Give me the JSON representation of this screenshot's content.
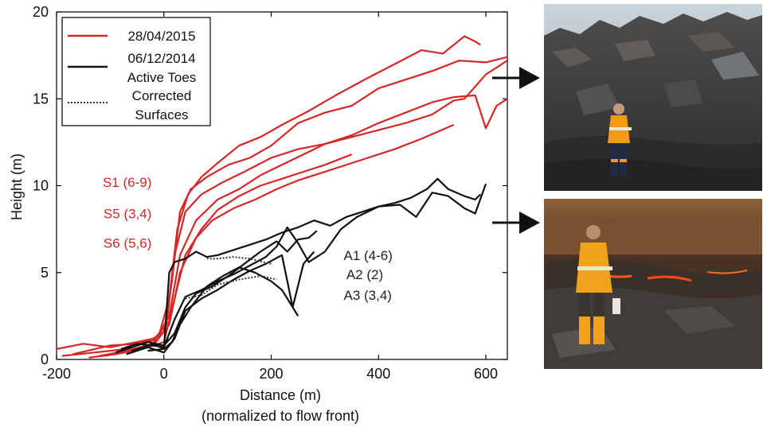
{
  "chart_data": {
    "type": "line",
    "title": "",
    "xlabel": "Distance (m)",
    "xlabel_sub": "(normalized to flow front)",
    "ylabel": "Height (m)",
    "xlim": [
      -200,
      640
    ],
    "ylim": [
      0,
      20
    ],
    "xticks": [
      -200,
      0,
      200,
      400,
      600
    ],
    "yticks": [
      0,
      5,
      10,
      15,
      20
    ],
    "grid": false,
    "legend_position": "top-left",
    "legend": [
      {
        "label": "28/04/2015",
        "style": "solid",
        "color": "#d62728"
      },
      {
        "label": "06/12/2014",
        "label2": "Active Toes",
        "style": "solid",
        "color": "#111111"
      },
      {
        "label": "Corrected",
        "label2": "Surfaces",
        "style": "dotted",
        "color": "#333333"
      }
    ],
    "annotations": [
      {
        "text": "S1 (6-9)",
        "x": -5,
        "y": 10.2,
        "color": "#d62728"
      },
      {
        "text": "S5 (3,4)",
        "x": -5,
        "y": 8.4,
        "color": "#d62728"
      },
      {
        "text": "S6 (5,6)",
        "x": -5,
        "y": 6.7,
        "color": "#d62728"
      },
      {
        "text": "A1 (4-6)",
        "x": 335,
        "y": 6.0,
        "color": "#222222"
      },
      {
        "text": "A2 (2)",
        "x": 340,
        "y": 4.9,
        "color": "#222222"
      },
      {
        "text": "A3 (3,4)",
        "x": 335,
        "y": 3.7,
        "color": "#222222"
      }
    ],
    "series": [
      {
        "group": "28/04/2015",
        "color": "#d62728",
        "x": [
          -200,
          -150,
          -100,
          -50,
          -20,
          0,
          15,
          30,
          50,
          80,
          120,
          160,
          200,
          250,
          300,
          350,
          400,
          450,
          500,
          550,
          600,
          640
        ],
        "y": [
          0.6,
          0.9,
          0.7,
          1.0,
          1.2,
          1.6,
          4.5,
          8.5,
          9.8,
          10.5,
          11.2,
          11.6,
          12.3,
          13.6,
          14.2,
          14.6,
          15.6,
          16.1,
          16.6,
          17.2,
          17.1,
          17.4
        ]
      },
      {
        "group": "28/04/2015",
        "color": "#d62728",
        "x": [
          -170,
          -100,
          -50,
          -10,
          10,
          25,
          45,
          70,
          100,
          140,
          180,
          220,
          270,
          320,
          380,
          430,
          480,
          520,
          560,
          580,
          590
        ],
        "y": [
          0.3,
          0.8,
          0.9,
          1.3,
          3.5,
          7.5,
          9.5,
          10.5,
          11.3,
          12.3,
          12.8,
          13.5,
          14.3,
          15.2,
          16.2,
          17.0,
          17.8,
          17.6,
          18.6,
          18.3,
          18.1
        ]
      },
      {
        "group": "28/04/2015",
        "color": "#d62728",
        "x": [
          -190,
          -130,
          -70,
          -20,
          5,
          20,
          40,
          70,
          110,
          150,
          200,
          250,
          300,
          350,
          400,
          450,
          500,
          540,
          560,
          600,
          640
        ],
        "y": [
          0.2,
          0.4,
          0.6,
          1.1,
          2.0,
          6.0,
          8.5,
          9.5,
          10.2,
          10.8,
          11.6,
          12.1,
          12.4,
          12.8,
          13.2,
          13.6,
          14.1,
          14.9,
          15.0,
          16.4,
          17.2
        ]
      },
      {
        "group": "28/04/2015",
        "color": "#d62728",
        "x": [
          -120,
          -70,
          -20,
          10,
          30,
          60,
          100,
          140,
          180,
          220,
          260,
          300,
          350,
          400,
          450,
          500,
          540,
          580,
          600,
          620,
          640
        ],
        "y": [
          0.2,
          0.5,
          0.9,
          2.5,
          6.0,
          8.0,
          9.2,
          9.8,
          10.6,
          11.2,
          11.8,
          12.4,
          12.9,
          13.6,
          14.2,
          14.8,
          15.1,
          15.2,
          13.3,
          14.6,
          15.0
        ]
      },
      {
        "group": "28/04/2015",
        "color": "#d62728",
        "x": [
          -140,
          -90,
          -40,
          0,
          20,
          40,
          70,
          100,
          140,
          180,
          220,
          260,
          300,
          350
        ],
        "y": [
          0.1,
          0.3,
          0.6,
          1.0,
          3.5,
          6.0,
          7.5,
          8.6,
          9.4,
          10.0,
          10.4,
          10.8,
          11.2,
          11.8
        ]
      },
      {
        "group": "28/04/2015",
        "color": "#d62728",
        "x": [
          -110,
          -60,
          -20,
          10,
          30,
          60,
          90,
          130,
          170,
          210,
          250,
          290,
          330,
          380,
          430,
          480,
          540
        ],
        "y": [
          0.2,
          0.5,
          0.8,
          2.0,
          5.0,
          7.0,
          8.0,
          8.7,
          9.2,
          9.8,
          10.3,
          10.7,
          11.1,
          11.6,
          12.1,
          12.7,
          13.5
        ]
      },
      {
        "group": "06/12/2014",
        "color": "#111111",
        "x": [
          -30,
          0,
          10,
          20,
          40,
          60,
          80,
          100,
          130,
          160,
          190,
          220,
          250,
          280,
          310,
          340,
          370,
          400,
          430,
          460,
          490,
          510,
          530,
          560,
          580,
          590
        ],
        "y": [
          0.5,
          0.6,
          5.0,
          5.6,
          5.8,
          6.2,
          5.9,
          6.0,
          6.3,
          6.6,
          6.9,
          7.3,
          7.6,
          8.0,
          7.7,
          8.2,
          8.5,
          8.8,
          9.0,
          9.3,
          9.8,
          10.4,
          9.8,
          9.4,
          9.2,
          9.5
        ]
      },
      {
        "group": "06/12/2014",
        "color": "#111111",
        "x": [
          -80,
          -50,
          -20,
          0,
          20,
          40,
          70,
          100,
          130,
          160,
          190,
          210,
          230,
          250,
          270,
          300,
          330,
          360,
          400,
          440,
          470,
          500,
          530,
          560,
          580,
          600
        ],
        "y": [
          0.6,
          0.9,
          0.8,
          0.7,
          2.3,
          3.6,
          4.0,
          4.5,
          4.9,
          5.4,
          5.9,
          6.5,
          7.6,
          6.7,
          5.6,
          6.2,
          7.5,
          8.2,
          8.8,
          8.9,
          8.2,
          9.6,
          9.4,
          8.7,
          8.4,
          10.1
        ]
      },
      {
        "group": "06/12/2014",
        "color": "#111111",
        "x": [
          -90,
          -60,
          -30,
          0,
          20,
          40,
          60,
          90,
          120,
          150,
          180,
          210,
          230,
          250,
          270,
          285
        ],
        "y": [
          0.4,
          0.7,
          1.0,
          0.8,
          1.5,
          3.0,
          3.8,
          4.2,
          4.8,
          5.5,
          6.2,
          6.8,
          6.2,
          6.9,
          7.0,
          7.4
        ]
      },
      {
        "group": "06/12/2014",
        "color": "#111111",
        "x": [
          -60,
          -20,
          0,
          15,
          30,
          50,
          80,
          110,
          140,
          170,
          200,
          220,
          240,
          260,
          280
        ],
        "y": [
          0.5,
          0.9,
          0.6,
          1.0,
          2.0,
          3.0,
          4.2,
          4.8,
          5.3,
          5.0,
          4.5,
          4.0,
          3.0,
          5.5,
          6.2
        ]
      },
      {
        "group": "06/12/2014",
        "color": "#111111",
        "x": [
          -70,
          -30,
          0,
          20,
          40,
          70,
          100,
          130,
          160,
          190,
          220,
          240,
          250
        ],
        "y": [
          0.3,
          0.7,
          0.4,
          1.2,
          2.8,
          3.5,
          4.0,
          4.6,
          5.1,
          5.5,
          6.0,
          3.0,
          2.5
        ]
      },
      {
        "group": "corrected",
        "color": "#333333",
        "dashed": true,
        "x": [
          80,
          100,
          130,
          160,
          200
        ],
        "y": [
          5.8,
          5.8,
          5.9,
          5.8,
          5.5
        ]
      },
      {
        "group": "corrected",
        "color": "#333333",
        "dashed": true,
        "x": [
          40,
          70,
          100,
          140,
          180,
          210
        ],
        "y": [
          3.5,
          3.7,
          4.3,
          4.6,
          4.8,
          4.6
        ]
      }
    ]
  },
  "photos": [
    {
      "name": "lava-wall-photo",
      "description_color_top": "#9aa4ad",
      "description_color_main": "#3d3c3b"
    },
    {
      "name": "active-toe-photo",
      "description_color_top": "#a06a3a",
      "description_color_main": "#2f2b29"
    }
  ]
}
